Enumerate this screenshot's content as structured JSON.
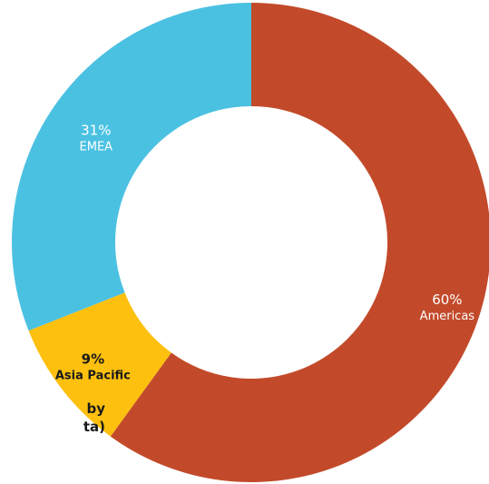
{
  "chart_data": {
    "type": "pie",
    "donut": true,
    "start_angle_deg": 0,
    "direction": "clockwise",
    "slices": [
      {
        "label": "Americas",
        "value": 60,
        "display": "60%",
        "color": "#C24A2A",
        "label_color": "#ffffff"
      },
      {
        "label": "Asia Pacific",
        "value": 9,
        "display": "9%",
        "color": "#FDC00F",
        "label_color": "#1a1a1a"
      },
      {
        "label": "EMEA",
        "value": 31,
        "display": "31%",
        "color": "#4BC1E2",
        "label_color": "#ffffff"
      }
    ]
  },
  "caption": {
    "line1": "by",
    "line2": "ta)"
  }
}
